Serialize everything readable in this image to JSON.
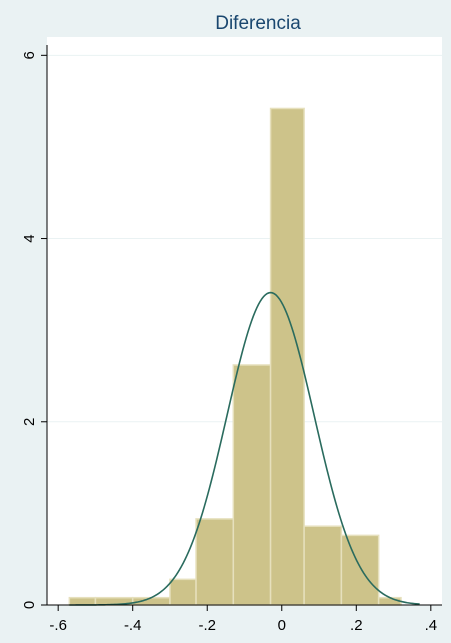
{
  "chart_data": {
    "type": "histogram",
    "title": "Diferencia",
    "xlabel": "",
    "ylabel": "",
    "xlim": [
      -0.63,
      0.43
    ],
    "ylim": [
      0,
      6.2
    ],
    "x_ticks": [
      {
        "value": -0.6,
        "label": "-.6"
      },
      {
        "value": -0.4,
        "label": "-.4"
      },
      {
        "value": -0.2,
        "label": "-.2"
      },
      {
        "value": 0,
        "label": "0"
      },
      {
        "value": 0.2,
        "label": ".2"
      },
      {
        "value": 0.4,
        "label": ".4"
      }
    ],
    "y_ticks": [
      {
        "value": 0,
        "label": "0"
      },
      {
        "value": 2,
        "label": "2"
      },
      {
        "value": 4,
        "label": "4"
      },
      {
        "value": 6,
        "label": "6"
      }
    ],
    "grid": true,
    "bins": [
      {
        "x0": -0.57,
        "x1": -0.5,
        "density": 0.08
      },
      {
        "x0": -0.5,
        "x1": -0.4,
        "density": 0.08
      },
      {
        "x0": -0.4,
        "x1": -0.3,
        "density": 0.08
      },
      {
        "x0": -0.3,
        "x1": -0.23,
        "density": 0.28
      },
      {
        "x0": -0.23,
        "x1": -0.13,
        "density": 0.94
      },
      {
        "x0": -0.13,
        "x1": -0.03,
        "density": 2.62
      },
      {
        "x0": -0.03,
        "x1": 0.06,
        "density": 5.42
      },
      {
        "x0": 0.06,
        "x1": 0.16,
        "density": 0.86
      },
      {
        "x0": 0.16,
        "x1": 0.26,
        "density": 0.76
      },
      {
        "x0": 0.26,
        "x1": 0.32,
        "density": 0.08
      }
    ],
    "normal_curve": {
      "mean": -0.03,
      "sd": 0.117,
      "x_range": [
        -0.57,
        0.37
      ]
    },
    "colors": {
      "background": "#eaf2f3",
      "plot_area": "#ffffff",
      "bar_fill": "#cdc38a",
      "bar_stroke": "#e6e0bd",
      "curve": "#2a6b5e",
      "grid": "#eaf2f3",
      "title": "#1a476f"
    }
  }
}
